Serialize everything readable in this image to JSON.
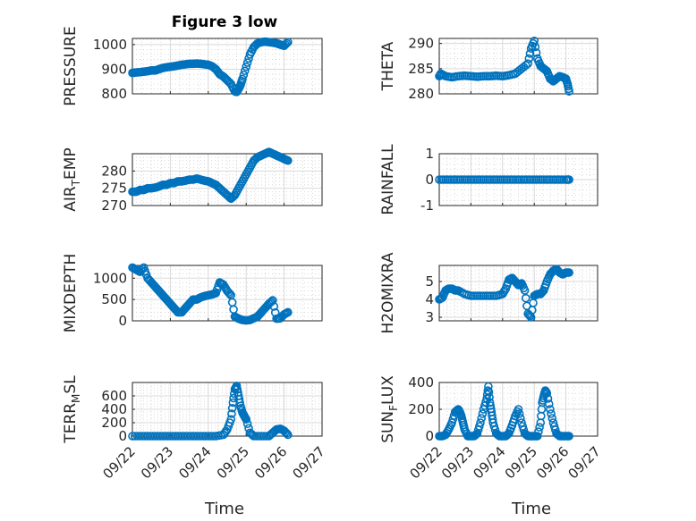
{
  "figure_title": "Figure 3 low",
  "x_ticks": [
    "09/22",
    "09/23",
    "09/24",
    "09/25",
    "09/26",
    "09/27"
  ],
  "x_label": "Time",
  "colors": {
    "marker": "#0072BD",
    "axis": "#262626"
  },
  "chart_data": [
    {
      "type": "scatter",
      "ylabel": "PRESSURE",
      "ylim": [
        800,
        1025
      ],
      "yticks": [
        800,
        900,
        1000
      ],
      "xlim": [
        0,
        5
      ],
      "x": [
        0,
        0.1,
        0.2,
        0.3,
        0.4,
        0.5,
        0.6,
        0.7,
        0.8,
        0.9,
        1.0,
        1.1,
        1.2,
        1.3,
        1.4,
        1.5,
        1.6,
        1.7,
        1.8,
        1.9,
        2.0,
        2.1,
        2.2,
        2.3,
        2.4,
        2.5,
        2.6,
        2.7,
        2.75,
        2.8,
        2.85,
        2.9,
        3.0,
        3.1,
        3.2,
        3.3,
        3.4,
        3.5,
        3.6,
        3.7,
        3.8,
        3.9,
        4.0,
        4.1
      ],
      "y": [
        885,
        887,
        888,
        890,
        892,
        895,
        895,
        900,
        905,
        908,
        910,
        912,
        915,
        918,
        920,
        922,
        922,
        923,
        922,
        920,
        918,
        912,
        900,
        880,
        870,
        855,
        840,
        810,
        808,
        820,
        835,
        860,
        910,
        960,
        990,
        1005,
        1010,
        1012,
        1010,
        1008,
        1005,
        1000,
        995,
        1010
      ]
    },
    {
      "type": "scatter",
      "ylabel": "THETA",
      "ylim": [
        280,
        291
      ],
      "yticks": [
        280,
        285,
        290
      ],
      "xlim": [
        0,
        5
      ],
      "x": [
        0,
        0.05,
        0.2,
        0.4,
        0.6,
        0.8,
        1.0,
        1.2,
        1.4,
        1.6,
        1.8,
        2.0,
        2.2,
        2.4,
        2.6,
        2.8,
        2.9,
        3.0,
        3.1,
        3.2,
        3.3,
        3.4,
        3.5,
        3.6,
        3.7,
        3.8,
        3.9,
        4.0,
        4.05,
        4.1
      ],
      "y": [
        283.5,
        284,
        283.5,
        283.3,
        283.5,
        283.6,
        283.5,
        283.4,
        283.5,
        283.5,
        283.6,
        283.5,
        283.7,
        284,
        285,
        286,
        289,
        290.5,
        287,
        285.5,
        285,
        284.5,
        283,
        282.5,
        283,
        283.5,
        283.3,
        283,
        282,
        280.5
      ]
    },
    {
      "type": "scatter",
      "ylabel": "AIR_TEMP",
      "ylim": [
        270,
        285
      ],
      "yticks": [
        270,
        275,
        280
      ],
      "xlim": [
        0,
        5
      ],
      "x": [
        0,
        0.1,
        0.2,
        0.3,
        0.4,
        0.5,
        0.6,
        0.7,
        0.8,
        0.9,
        1.0,
        1.1,
        1.2,
        1.3,
        1.4,
        1.5,
        1.6,
        1.7,
        1.8,
        1.9,
        2.0,
        2.1,
        2.2,
        2.3,
        2.4,
        2.5,
        2.6,
        2.7,
        2.8,
        2.9,
        3.0,
        3.1,
        3.2,
        3.3,
        3.4,
        3.5,
        3.6,
        3.7,
        3.8,
        3.9,
        4.0,
        4.1
      ],
      "y": [
        274,
        274,
        274.5,
        274.5,
        275,
        275,
        275.2,
        275.5,
        276,
        276,
        276.5,
        276.5,
        277,
        277,
        277.2,
        277.5,
        277.5,
        277.8,
        277.5,
        277.2,
        277,
        276.5,
        276,
        275,
        274,
        273,
        272,
        273,
        275,
        277,
        279,
        281,
        283,
        284,
        284.5,
        285,
        285.5,
        285,
        284.5,
        284,
        283.5,
        283
      ]
    },
    {
      "type": "scatter",
      "ylabel": "RAINFALL",
      "ylim": [
        -1,
        1
      ],
      "yticks": [
        -1,
        0,
        1
      ],
      "xlim": [
        0,
        5
      ],
      "x": [
        0,
        0.2,
        0.4,
        0.6,
        0.8,
        1.0,
        1.2,
        1.4,
        1.6,
        1.8,
        2.0,
        2.2,
        2.4,
        2.6,
        2.8,
        3.0,
        3.2,
        3.4,
        3.6,
        3.8,
        4.0,
        4.1
      ],
      "y": [
        0,
        0,
        0,
        0,
        0,
        0,
        0,
        0,
        0,
        0,
        0,
        0,
        0,
        0,
        0,
        0,
        0,
        0,
        0,
        0,
        0,
        0
      ]
    },
    {
      "type": "scatter",
      "ylabel": "MIXDEPTH",
      "ylim": [
        0,
        1300
      ],
      "yticks": [
        0,
        500,
        1000
      ],
      "xlim": [
        0,
        5
      ],
      "x": [
        0,
        0.1,
        0.2,
        0.3,
        0.4,
        0.5,
        0.6,
        0.7,
        0.8,
        0.9,
        1.0,
        1.1,
        1.2,
        1.3,
        1.4,
        1.5,
        1.6,
        1.7,
        1.8,
        1.9,
        2.0,
        2.1,
        2.2,
        2.3,
        2.4,
        2.5,
        2.6,
        2.7,
        2.8,
        2.9,
        3.0,
        3.1,
        3.2,
        3.3,
        3.4,
        3.5,
        3.6,
        3.7,
        3.8,
        3.9,
        4.0,
        4.1
      ],
      "y": [
        1250,
        1200,
        1150,
        1250,
        1000,
        900,
        800,
        700,
        600,
        500,
        400,
        300,
        200,
        200,
        300,
        400,
        500,
        500,
        550,
        580,
        600,
        620,
        650,
        900,
        850,
        700,
        600,
        100,
        50,
        20,
        10,
        20,
        60,
        100,
        200,
        300,
        400,
        480,
        50,
        60,
        150,
        200
      ]
    },
    {
      "type": "scatter",
      "ylabel": "H2OMIXRA",
      "ylim": [
        2.8,
        5.9
      ],
      "yticks": [
        3,
        4,
        5
      ],
      "xlim": [
        0,
        5
      ],
      "x": [
        0,
        0.1,
        0.2,
        0.3,
        0.4,
        0.5,
        0.6,
        0.8,
        1.0,
        1.2,
        1.4,
        1.6,
        1.8,
        2.0,
        2.1,
        2.2,
        2.3,
        2.4,
        2.5,
        2.6,
        2.7,
        2.8,
        2.9,
        3.0,
        3.1,
        3.2,
        3.3,
        3.4,
        3.5,
        3.6,
        3.7,
        3.8,
        3.9,
        4.0,
        4.1
      ],
      "y": [
        4.0,
        4.1,
        4.5,
        4.6,
        4.6,
        4.5,
        4.5,
        4.3,
        4.2,
        4.2,
        4.2,
        4.2,
        4.2,
        4.3,
        4.6,
        5.1,
        5.2,
        5.0,
        4.8,
        4.9,
        4.5,
        3.2,
        3.0,
        4.2,
        4.3,
        4.3,
        4.5,
        5.0,
        5.4,
        5.6,
        5.7,
        5.5,
        5.4,
        5.5,
        5.5
      ]
    },
    {
      "type": "scatter",
      "ylabel": "TERR_MSL",
      "ylim": [
        0,
        800
      ],
      "yticks": [
        0,
        200,
        400,
        600
      ],
      "xlim": [
        0,
        5
      ],
      "x": [
        0,
        0.2,
        0.4,
        0.6,
        0.8,
        1.0,
        1.2,
        1.4,
        1.6,
        1.8,
        2.0,
        2.2,
        2.4,
        2.5,
        2.6,
        2.65,
        2.7,
        2.75,
        2.8,
        2.85,
        2.9,
        2.95,
        3.0,
        3.1,
        3.2,
        3.4,
        3.6,
        3.7,
        3.8,
        3.9,
        4.0,
        4.1
      ],
      "y": [
        0,
        0,
        0,
        0,
        0,
        0,
        0,
        0,
        0,
        0,
        0,
        0,
        20,
        100,
        250,
        500,
        700,
        750,
        600,
        450,
        350,
        300,
        250,
        50,
        0,
        0,
        0,
        50,
        100,
        110,
        80,
        20
      ]
    },
    {
      "type": "scatter",
      "ylabel": "SUN_FLUX",
      "ylim": [
        0,
        400
      ],
      "yticks": [
        0,
        200,
        400
      ],
      "xlim": [
        0,
        5
      ],
      "x": [
        0,
        0.1,
        0.2,
        0.3,
        0.4,
        0.5,
        0.6,
        0.65,
        0.7,
        0.75,
        0.8,
        0.9,
        1.0,
        1.1,
        1.2,
        1.3,
        1.4,
        1.5,
        1.55,
        1.6,
        1.65,
        1.7,
        1.8,
        1.9,
        2.0,
        2.1,
        2.2,
        2.3,
        2.4,
        2.5,
        2.6,
        2.7,
        2.8,
        2.9,
        3.0,
        3.1,
        3.2,
        3.25,
        3.3,
        3.35,
        3.4,
        3.5,
        3.6,
        3.7,
        3.8,
        3.9,
        4.0,
        4.1
      ],
      "y": [
        0,
        0,
        10,
        50,
        100,
        180,
        200,
        180,
        150,
        100,
        50,
        0,
        0,
        0,
        20,
        100,
        200,
        280,
        370,
        250,
        180,
        100,
        20,
        0,
        0,
        0,
        20,
        80,
        150,
        200,
        100,
        20,
        0,
        0,
        0,
        0,
        100,
        250,
        300,
        340,
        320,
        200,
        100,
        20,
        0,
        0,
        0,
        0
      ]
    }
  ],
  "axis_labels": [
    {
      "main": "PRESSURE",
      "sub": ""
    },
    {
      "main": "THETA",
      "sub": ""
    },
    {
      "main": "AIR",
      "sub": "T",
      "rest": "EMP"
    },
    {
      "main": "RAINFALL",
      "sub": ""
    },
    {
      "main": "MIXDEPTH",
      "sub": ""
    },
    {
      "main": "H2OMIXRA",
      "sub": ""
    },
    {
      "main": "TERR",
      "sub": "M",
      "rest": "SL"
    },
    {
      "main": "SUN",
      "sub": "F",
      "rest": "LUX"
    }
  ]
}
